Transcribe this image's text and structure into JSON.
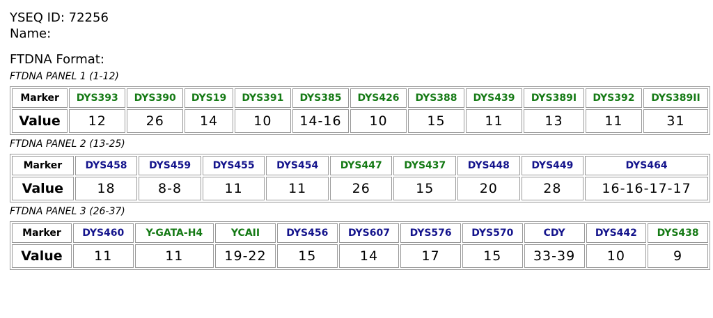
{
  "header": {
    "yseq_id": "YSEQ ID: 72256",
    "name": "Name:",
    "format": "FTDNA Format:"
  },
  "panels": [
    {
      "title": "FTDNA PANEL 1 (1-12)",
      "marker_label": "Marker",
      "value_label": "Value",
      "markers": [
        {
          "name": "DYS393",
          "color": "#157a15"
        },
        {
          "name": "DYS390",
          "color": "#157a15"
        },
        {
          "name": "DYS19",
          "color": "#157a15"
        },
        {
          "name": "DYS391",
          "color": "#157a15"
        },
        {
          "name": "DYS385",
          "color": "#157a15"
        },
        {
          "name": "DYS426",
          "color": "#157a15"
        },
        {
          "name": "DYS388",
          "color": "#157a15"
        },
        {
          "name": "DYS439",
          "color": "#157a15"
        },
        {
          "name": "DYS389I",
          "color": "#157a15"
        },
        {
          "name": "DYS392",
          "color": "#157a15"
        },
        {
          "name": "DYS389II",
          "color": "#157a15"
        }
      ],
      "values": [
        "12",
        "26",
        "14",
        "10",
        "14-16",
        "10",
        "15",
        "11",
        "13",
        "11",
        "31"
      ]
    },
    {
      "title": "FTDNA PANEL 2 (13-25)",
      "marker_label": "Marker",
      "value_label": "Value",
      "markers": [
        {
          "name": "DYS458",
          "color": "#14148c"
        },
        {
          "name": "DYS459",
          "color": "#14148c"
        },
        {
          "name": "DYS455",
          "color": "#14148c"
        },
        {
          "name": "DYS454",
          "color": "#14148c"
        },
        {
          "name": "DYS447",
          "color": "#157a15"
        },
        {
          "name": "DYS437",
          "color": "#157a15"
        },
        {
          "name": "DYS448",
          "color": "#14148c"
        },
        {
          "name": "DYS449",
          "color": "#14148c"
        },
        {
          "name": "DYS464",
          "color": "#14148c"
        }
      ],
      "values": [
        "18",
        "8-8",
        "11",
        "11",
        "26",
        "15",
        "20",
        "28",
        "16-16-17-17"
      ]
    },
    {
      "title": "FTDNA PANEL 3 (26-37)",
      "marker_label": "Marker",
      "value_label": "Value",
      "markers": [
        {
          "name": "DYS460",
          "color": "#14148c"
        },
        {
          "name": "Y-GATA-H4",
          "color": "#157a15"
        },
        {
          "name": "YCAII",
          "color": "#157a15"
        },
        {
          "name": "DYS456",
          "color": "#14148c"
        },
        {
          "name": "DYS607",
          "color": "#14148c"
        },
        {
          "name": "DYS576",
          "color": "#14148c"
        },
        {
          "name": "DYS570",
          "color": "#14148c"
        },
        {
          "name": "CDY",
          "color": "#14148c"
        },
        {
          "name": "DYS442",
          "color": "#14148c"
        },
        {
          "name": "DYS438",
          "color": "#157a15"
        }
      ],
      "values": [
        "11",
        "11",
        "19-22",
        "15",
        "14",
        "17",
        "15",
        "33-39",
        "10",
        "9"
      ]
    }
  ]
}
